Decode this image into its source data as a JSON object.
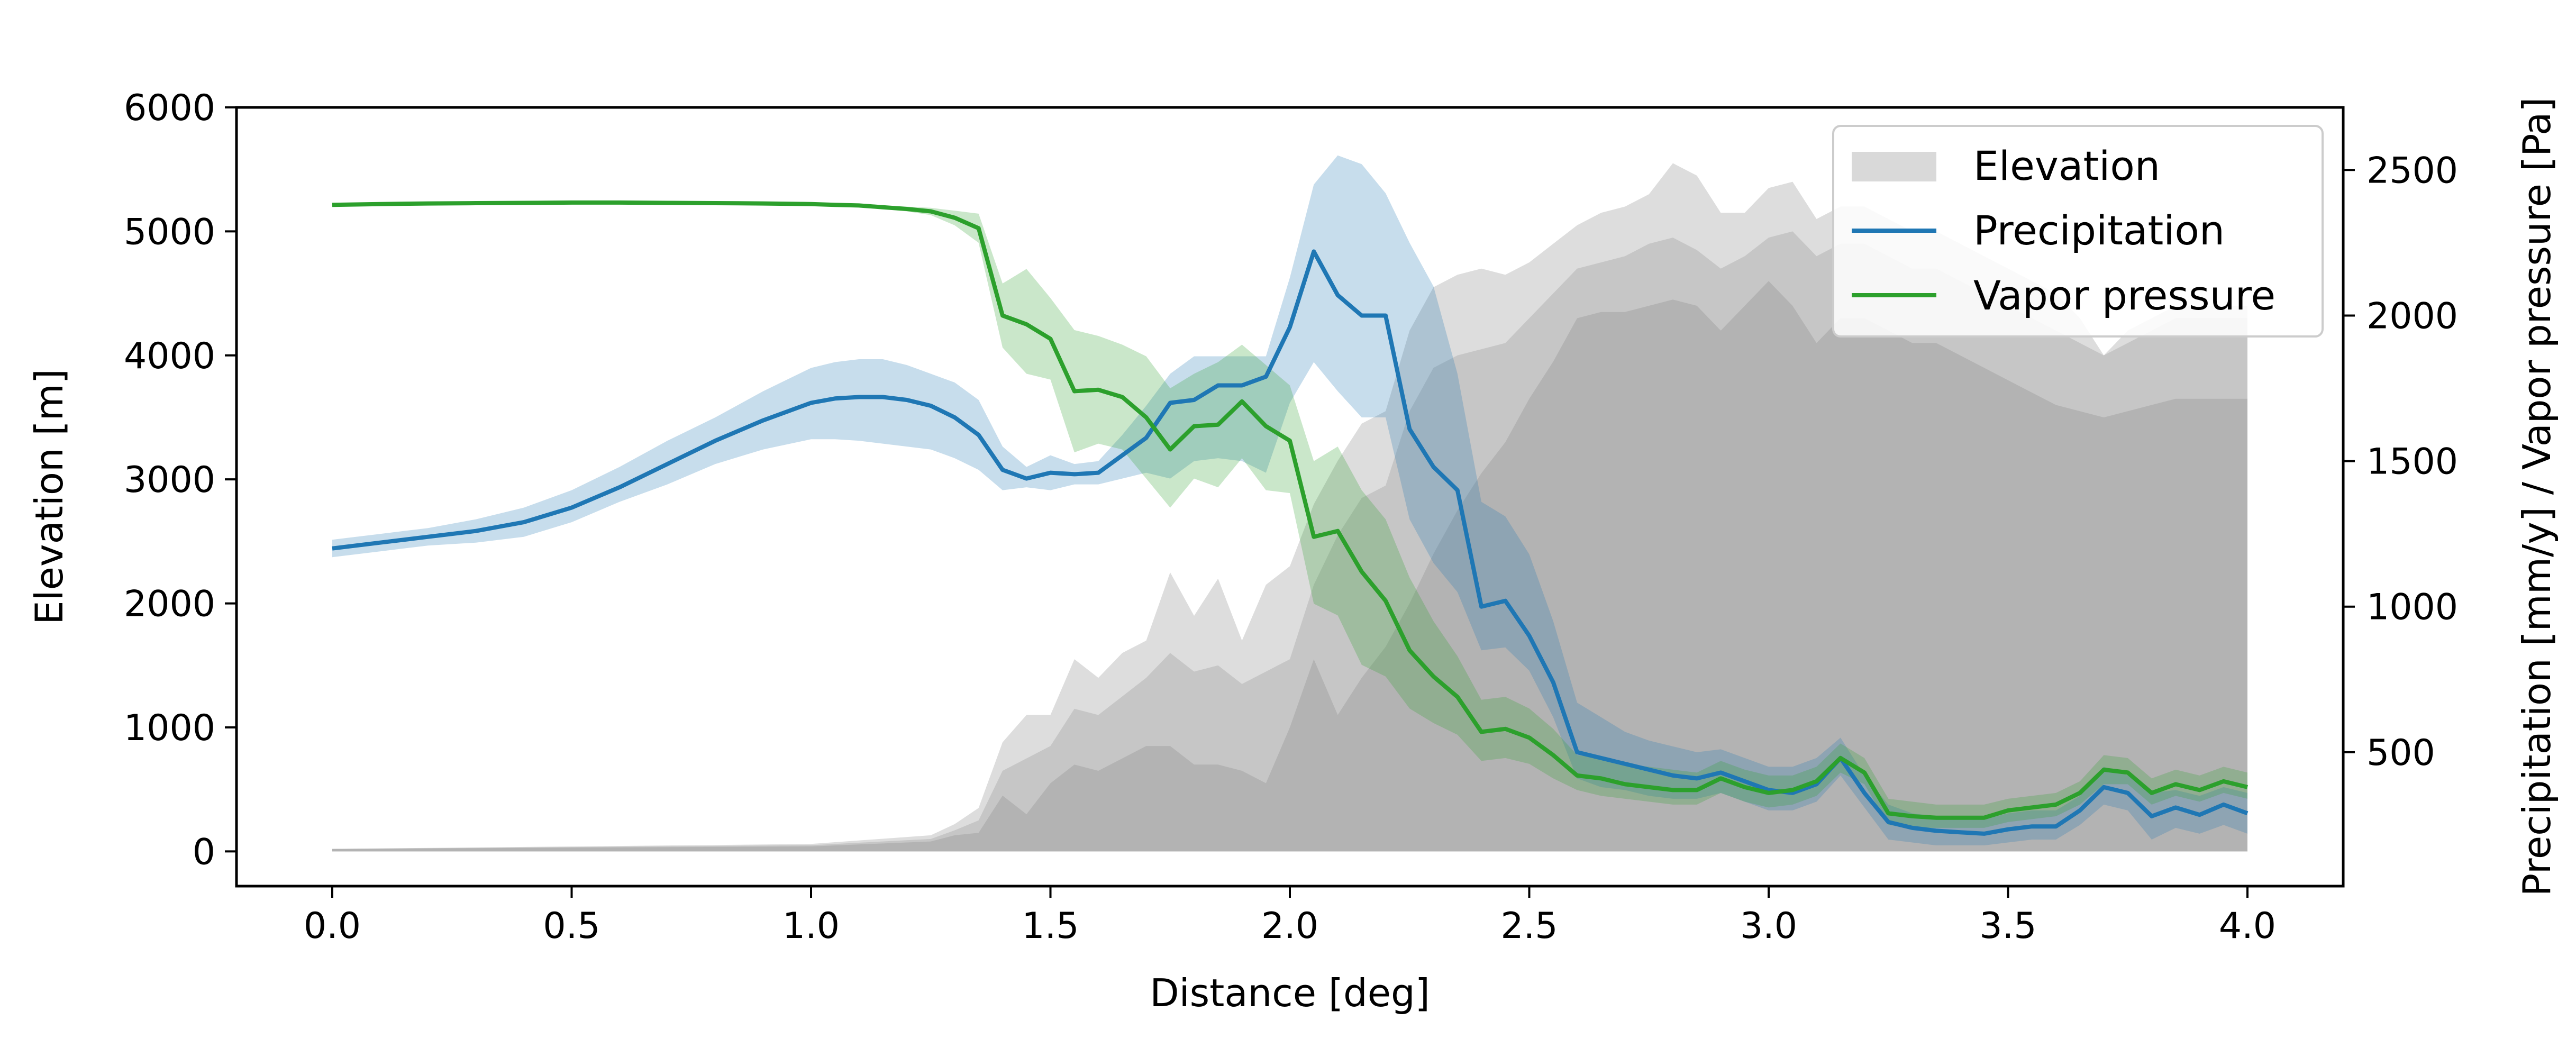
{
  "chart_data": {
    "type": "area",
    "title": "",
    "xlabel": "Distance [deg]",
    "ylabel": "Elevation [m]",
    "y2label": "Precipitation [mm/y] / Vapor pressure [Pa]",
    "xlim": [
      -0.2,
      4.2
    ],
    "ylim": [
      -280,
      6000
    ],
    "y2lim": [
      40,
      2715
    ],
    "xticks": [
      0.0,
      0.5,
      1.0,
      1.5,
      2.0,
      2.5,
      3.0,
      3.5,
      4.0
    ],
    "xtick_labels": [
      "0.0",
      "0.5",
      "1.0",
      "1.5",
      "2.0",
      "2.5",
      "3.0",
      "3.5",
      "4.0"
    ],
    "yticks": [
      0,
      1000,
      2000,
      3000,
      4000,
      5000,
      6000
    ],
    "ytick_labels": [
      "0",
      "1000",
      "2000",
      "3000",
      "4000",
      "5000",
      "6000"
    ],
    "y2ticks": [
      500,
      1000,
      1500,
      2000,
      2500
    ],
    "y2tick_labels": [
      "500",
      "1000",
      "1500",
      "2000",
      "2500"
    ],
    "grid": false,
    "legend": {
      "position": "top-right",
      "entries": [
        {
          "label": "Elevation",
          "kind": "patch",
          "color": "#d9d9d9"
        },
        {
          "label": "Precipitation",
          "kind": "line",
          "color": "#1f77b4"
        },
        {
          "label": "Vapor pressure",
          "kind": "line",
          "color": "#2ca02c"
        }
      ]
    },
    "colors": {
      "elevation_outer": "#dddddd",
      "elevation_mid": "#c6c6c6",
      "elevation_inner": "#b3b3b3",
      "precipitation": "#1f77b4",
      "vapor_pressure": "#2ca02c"
    },
    "elevation": {
      "x": [
        0.0,
        1.0,
        1.25,
        1.3,
        1.35,
        1.4,
        1.45,
        1.5,
        1.55,
        1.6,
        1.65,
        1.7,
        1.75,
        1.8,
        1.85,
        1.9,
        1.95,
        2.0,
        2.05,
        2.1,
        2.15,
        2.2,
        2.25,
        2.3,
        2.35,
        2.4,
        2.45,
        2.5,
        2.55,
        2.6,
        2.65,
        2.7,
        2.75,
        2.8,
        2.85,
        2.9,
        2.95,
        3.0,
        3.05,
        3.1,
        3.15,
        3.2,
        3.25,
        3.3,
        3.35,
        3.4,
        3.45,
        3.5,
        3.55,
        3.6,
        3.65,
        3.7,
        3.75,
        3.8,
        3.85,
        3.9,
        3.95,
        4.0
      ],
      "outer": [
        20,
        60,
        130,
        220,
        350,
        880,
        1100,
        1100,
        1550,
        1400,
        1600,
        1700,
        2250,
        1900,
        2200,
        1700,
        2150,
        2300,
        2800,
        3150,
        3450,
        3550,
        4200,
        4550,
        4650,
        4700,
        4650,
        4750,
        4900,
        5050,
        5150,
        5200,
        5300,
        5550,
        5450,
        5150,
        5150,
        5350,
        5400,
        5100,
        5200,
        5200,
        5100,
        5000,
        5000,
        4900,
        4800,
        4700,
        4600,
        4500,
        4300,
        4000,
        4200,
        4300,
        4400,
        4400,
        4400,
        4400
      ],
      "mid": [
        20,
        50,
        100,
        170,
        250,
        650,
        750,
        850,
        1150,
        1100,
        1250,
        1400,
        1600,
        1450,
        1500,
        1350,
        1450,
        1550,
        2150,
        2550,
        2850,
        2950,
        3550,
        3900,
        4000,
        4050,
        4100,
        4300,
        4500,
        4700,
        4750,
        4800,
        4900,
        4950,
        4850,
        4700,
        4800,
        4950,
        5000,
        4800,
        4900,
        4900,
        4800,
        4700,
        4700,
        4600,
        4500,
        4400,
        4300,
        4200,
        4100,
        4000,
        4100,
        4200,
        4300,
        4300,
        4300,
        4300
      ],
      "inner": [
        20,
        40,
        80,
        130,
        150,
        450,
        300,
        550,
        700,
        650,
        750,
        850,
        850,
        700,
        700,
        650,
        550,
        1000,
        1550,
        1100,
        1400,
        1650,
        2000,
        2400,
        2750,
        3050,
        3300,
        3650,
        3950,
        4300,
        4350,
        4350,
        4400,
        4450,
        4400,
        4200,
        4400,
        4600,
        4400,
        4100,
        4300,
        4300,
        4200,
        4100,
        4100,
        4000,
        3900,
        3800,
        3700,
        3600,
        3550,
        3500,
        3550,
        3600,
        3650,
        3650,
        3650,
        3650
      ]
    },
    "precipitation": {
      "x": [
        0.0,
        0.1,
        0.2,
        0.3,
        0.4,
        0.5,
        0.6,
        0.7,
        0.8,
        0.9,
        1.0,
        1.05,
        1.1,
        1.15,
        1.2,
        1.25,
        1.3,
        1.35,
        1.4,
        1.45,
        1.5,
        1.55,
        1.6,
        1.65,
        1.7,
        1.75,
        1.8,
        1.85,
        1.9,
        1.95,
        2.0,
        2.05,
        2.1,
        2.15,
        2.2,
        2.25,
        2.3,
        2.35,
        2.4,
        2.45,
        2.5,
        2.55,
        2.6,
        2.65,
        2.7,
        2.75,
        2.8,
        2.85,
        2.9,
        2.95,
        3.0,
        3.05,
        3.1,
        3.15,
        3.2,
        3.25,
        3.3,
        3.35,
        3.4,
        3.45,
        3.5,
        3.55,
        3.6,
        3.65,
        3.7,
        3.75,
        3.8,
        3.85,
        3.9,
        3.95,
        4.0
      ],
      "mean": [
        1200,
        1220,
        1240,
        1260,
        1290,
        1340,
        1410,
        1490,
        1570,
        1640,
        1700,
        1715,
        1720,
        1720,
        1710,
        1690,
        1650,
        1590,
        1470,
        1440,
        1460,
        1455,
        1460,
        1520,
        1580,
        1700,
        1710,
        1760,
        1760,
        1790,
        1960,
        2220,
        2070,
        2000,
        2000,
        1610,
        1480,
        1400,
        1000,
        1020,
        900,
        740,
        500,
        480,
        460,
        440,
        420,
        410,
        430,
        400,
        370,
        360,
        390,
        480,
        360,
        260,
        240,
        230,
        225,
        220,
        235,
        245,
        245,
        300,
        380,
        360,
        280,
        310,
        285,
        320,
        290
      ],
      "lo": [
        1170,
        1190,
        1210,
        1220,
        1240,
        1290,
        1360,
        1420,
        1490,
        1540,
        1575,
        1575,
        1570,
        1560,
        1550,
        1540,
        1510,
        1470,
        1400,
        1410,
        1400,
        1420,
        1420,
        1440,
        1460,
        1440,
        1500,
        1510,
        1500,
        1460,
        1700,
        1840,
        1740,
        1650,
        1650,
        1300,
        1150,
        1050,
        850,
        860,
        780,
        620,
        410,
        380,
        370,
        350,
        340,
        340,
        360,
        330,
        300,
        300,
        330,
        420,
        310,
        200,
        190,
        180,
        180,
        180,
        190,
        200,
        200,
        250,
        320,
        300,
        200,
        240,
        220,
        250,
        220
      ],
      "hi": [
        1230,
        1250,
        1270,
        1300,
        1340,
        1400,
        1480,
        1570,
        1650,
        1740,
        1820,
        1840,
        1850,
        1850,
        1830,
        1800,
        1770,
        1710,
        1550,
        1480,
        1520,
        1490,
        1500,
        1590,
        1690,
        1800,
        1860,
        1860,
        1860,
        1860,
        2130,
        2450,
        2550,
        2520,
        2420,
        2250,
        2100,
        1800,
        1360,
        1310,
        1180,
        950,
        670,
        620,
        570,
        540,
        520,
        500,
        510,
        480,
        450,
        450,
        480,
        550,
        420,
        320,
        290,
        280,
        280,
        270,
        290,
        300,
        300,
        350,
        450,
        420,
        360,
        370,
        350,
        380,
        360
      ]
    },
    "vapor_pressure": {
      "x": [
        0.0,
        0.1,
        0.2,
        0.3,
        0.4,
        0.5,
        0.6,
        0.7,
        0.8,
        0.9,
        1.0,
        1.05,
        1.1,
        1.15,
        1.2,
        1.25,
        1.3,
        1.35,
        1.4,
        1.45,
        1.5,
        1.55,
        1.6,
        1.65,
        1.7,
        1.75,
        1.8,
        1.85,
        1.9,
        1.95,
        2.0,
        2.05,
        2.1,
        2.15,
        2.2,
        2.25,
        2.3,
        2.35,
        2.4,
        2.45,
        2.5,
        2.55,
        2.6,
        2.65,
        2.7,
        2.75,
        2.8,
        2.85,
        2.9,
        2.95,
        3.0,
        3.05,
        3.1,
        3.15,
        3.2,
        3.25,
        3.3,
        3.35,
        3.4,
        3.45,
        3.5,
        3.55,
        3.6,
        3.65,
        3.7,
        3.75,
        3.8,
        3.85,
        3.9,
        3.95,
        4.0
      ],
      "mean": [
        2380,
        2383,
        2385,
        2386,
        2387,
        2388,
        2388,
        2387,
        2386,
        2385,
        2383,
        2380,
        2378,
        2372,
        2366,
        2358,
        2336,
        2300,
        2000,
        1970,
        1920,
        1740,
        1745,
        1720,
        1650,
        1540,
        1620,
        1625,
        1705,
        1620,
        1570,
        1240,
        1260,
        1120,
        1020,
        850,
        760,
        690,
        570,
        580,
        550,
        490,
        420,
        410,
        390,
        380,
        370,
        370,
        410,
        380,
        360,
        370,
        400,
        480,
        430,
        290,
        280,
        275,
        275,
        275,
        300,
        310,
        320,
        360,
        440,
        430,
        360,
        390,
        370,
        400,
        380
      ],
      "lo": [
        2375,
        2378,
        2380,
        2381,
        2382,
        2383,
        2383,
        2382,
        2381,
        2380,
        2378,
        2375,
        2372,
        2366,
        2358,
        2345,
        2310,
        2250,
        1890,
        1800,
        1780,
        1530,
        1560,
        1540,
        1440,
        1340,
        1440,
        1410,
        1510,
        1400,
        1390,
        1010,
        970,
        800,
        760,
        650,
        600,
        560,
        470,
        480,
        460,
        410,
        370,
        350,
        340,
        330,
        320,
        320,
        360,
        330,
        310,
        320,
        350,
        430,
        390,
        250,
        240,
        240,
        240,
        240,
        260,
        270,
        280,
        320,
        390,
        390,
        320,
        350,
        330,
        360,
        340
      ],
      "hi": [
        2385,
        2388,
        2390,
        2391,
        2392,
        2393,
        2393,
        2392,
        2391,
        2390,
        2388,
        2385,
        2383,
        2378,
        2374,
        2370,
        2360,
        2350,
        2110,
        2160,
        2060,
        1950,
        1930,
        1900,
        1860,
        1750,
        1800,
        1840,
        1900,
        1830,
        1760,
        1500,
        1550,
        1400,
        1300,
        1100,
        950,
        830,
        680,
        690,
        650,
        580,
        490,
        480,
        460,
        450,
        440,
        430,
        470,
        440,
        420,
        420,
        450,
        530,
        480,
        340,
        330,
        320,
        320,
        320,
        340,
        350,
        360,
        400,
        490,
        480,
        410,
        440,
        420,
        450,
        430
      ]
    }
  }
}
